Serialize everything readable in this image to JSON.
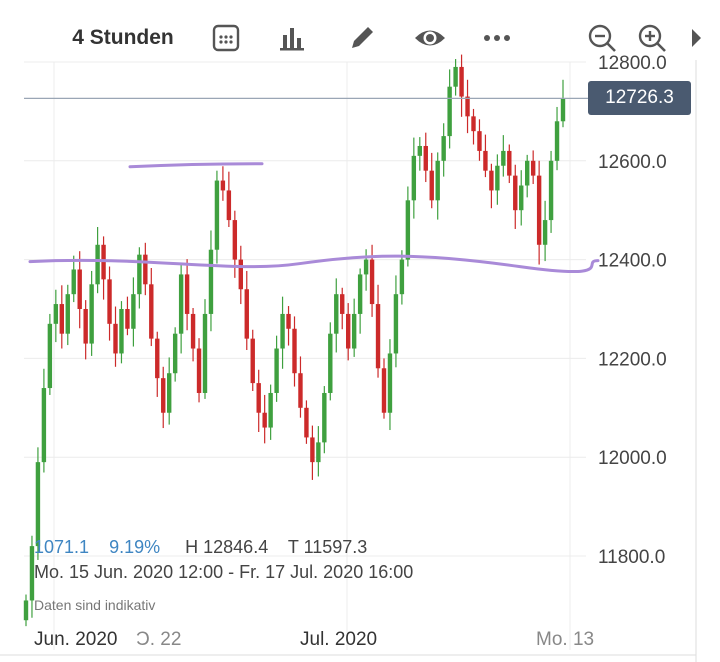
{
  "toolbar": {
    "interval_label": "4 Stunden",
    "icons": [
      "calendar-grid-icon",
      "bar-chart-icon",
      "pencil-icon",
      "eye-icon",
      "more-dots-icon",
      "zoom-out-icon",
      "zoom-in-icon",
      "play-icon"
    ]
  },
  "price_badge": "12726.3",
  "stats": {
    "change": "1071.1",
    "change_pct": "9.19%",
    "high": "H 12846.4",
    "low": "T 11597.3"
  },
  "date_range": "Mo. 15 Jun. 2020 12:00 - Fr. 17 Jul. 2020 16:00",
  "disclaimer": "Daten sind indikativ",
  "colors": {
    "up": "#3fa03f",
    "down": "#cc2a2a",
    "drawing": "#a98ad8",
    "badge": "#4a5a70"
  },
  "chart_data": {
    "type": "candlestick",
    "y_ticks": [
      "12800.0",
      "12600.0",
      "12400.0",
      "12200.0",
      "12000.0",
      "11800.0"
    ],
    "y_values": [
      12800,
      12600,
      12400,
      12200,
      12000,
      11800
    ],
    "ylim": [
      11700,
      12840
    ],
    "x_ticks": [
      "Jun. 2020",
      "Ͻ. 22",
      "Jul. 2020",
      "Mo. 13"
    ],
    "current_price": 12726.3,
    "trend_lines": [
      {
        "name": "resistance-line",
        "from": 12588,
        "to": 12594
      },
      {
        "name": "support-line",
        "from": 12396,
        "to": 12398
      }
    ],
    "closes": [
      11710,
      11820,
      11990,
      12140,
      12270,
      12310,
      12250,
      12330,
      12380,
      12300,
      12230,
      12350,
      12430,
      12360,
      12270,
      12210,
      12300,
      12260,
      12330,
      12410,
      12350,
      12240,
      12160,
      12090,
      12170,
      12250,
      12370,
      12290,
      12220,
      12130,
      12290,
      12420,
      12560,
      12540,
      12480,
      12400,
      12340,
      12240,
      12150,
      12090,
      12060,
      12130,
      12220,
      12290,
      12260,
      12170,
      12100,
      12040,
      11990,
      12030,
      12130,
      12250,
      12330,
      12290,
      12220,
      12290,
      12370,
      12400,
      12310,
      12180,
      12090,
      12210,
      12330,
      12400,
      12520,
      12610,
      12630,
      12580,
      12520,
      12600,
      12650,
      12750,
      12790,
      12730,
      12690,
      12660,
      12620,
      12580,
      12540,
      12590,
      12620,
      12570,
      12500,
      12550,
      12600,
      12570,
      12430,
      12480,
      12600,
      12680,
      12726
    ]
  }
}
